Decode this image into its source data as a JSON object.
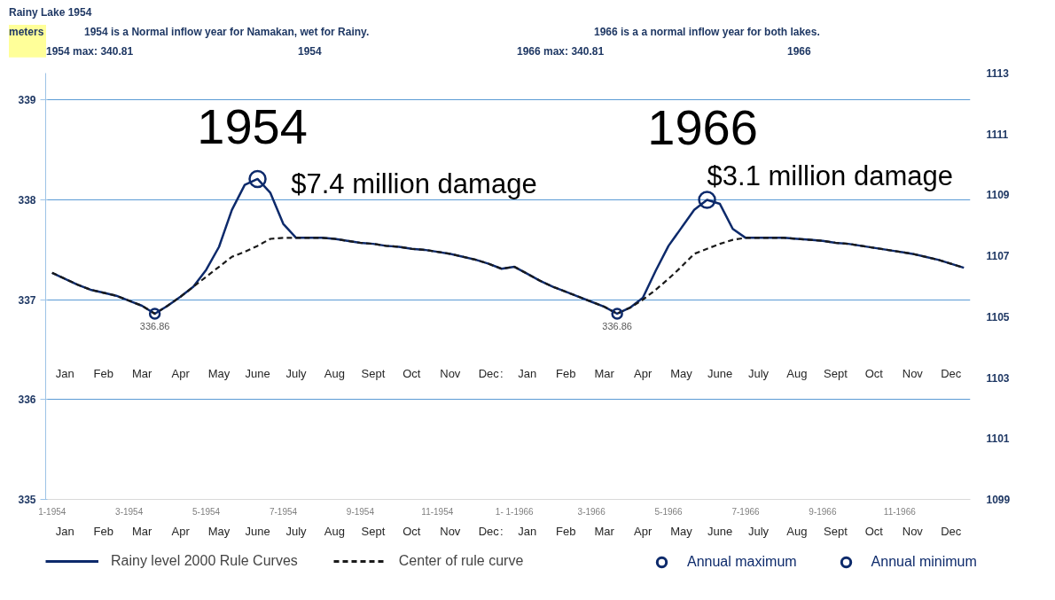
{
  "chart_data": {
    "type": "line",
    "title": "Rainy Lake 1954",
    "ylabel": "meters",
    "annotations": [
      "1954 is a Normal inflow year for Namakan, wet for Rainy.",
      "1966 is a  a normal inflow year for both lakes.",
      "1954 max: 340.81",
      "1954",
      "1966 max: 340.81",
      "1966",
      "1954",
      "$7.4 million damage",
      "1966",
      "$3.1 million damage",
      "Jan",
      "Feb",
      "Mar",
      "Apr",
      "May",
      "June",
      "July",
      "Aug",
      "Sept",
      "Oct",
      "Nov",
      "Dec",
      ":",
      "Jan",
      "Feb",
      "Mar",
      "Apr",
      "May",
      "June",
      "July",
      "Aug",
      "Sept",
      "Oct",
      "Nov",
      "Dec",
      ":"
    ],
    "categories": [
      "1-1954",
      "Jan",
      null,
      null,
      "Feb",
      null,
      "3-1954",
      "Mar",
      null,
      null,
      "Apr",
      null,
      "5-1954",
      "May",
      null,
      null,
      "June",
      null,
      "7-1954",
      "July",
      null,
      null,
      "Aug",
      null,
      "9-1954",
      "Sept",
      null,
      null,
      "Oct",
      null,
      "11-1954",
      "Nov",
      null,
      null,
      "Dec",
      null,
      "1- 1-1966",
      "Jan",
      null,
      null,
      "Feb",
      null,
      "3-1966",
      "Mar",
      null,
      null,
      "Apr",
      null,
      "5-1966",
      "May",
      null,
      null,
      "June",
      null,
      "7-1966",
      "July",
      null,
      null,
      "Aug",
      null,
      "9-1966",
      "Sept",
      null,
      null,
      "Oct",
      null,
      "11-1966",
      "Nov",
      null,
      null,
      "Dec",
      null
    ],
    "ylim": [
      335,
      339.27
    ],
    "yticks": [
      335,
      336,
      337,
      338,
      339
    ],
    "y2lim": [
      1099,
      1113
    ],
    "y2ticks": [
      1099,
      1101,
      1103,
      1105,
      1107,
      1109,
      1111,
      1113
    ],
    "grid": "y",
    "legend": "bottom",
    "series": [
      {
        "name": "Rainy level 2000 Rule Curves",
        "color": "#0d2a6b",
        "line_style": "solid",
        "values": [
          337.27,
          337.21,
          337.15,
          337.1,
          337.07,
          337.04,
          336.99,
          336.94,
          336.86,
          336.94,
          337.03,
          337.13,
          337.3,
          337.53,
          337.9,
          338.15,
          338.21,
          338.07,
          337.76,
          337.62,
          337.62,
          337.62,
          337.61,
          337.59,
          337.57,
          337.56,
          337.54,
          337.53,
          337.51,
          337.5,
          337.48,
          337.46,
          337.43,
          337.4,
          337.36,
          337.31,
          337.33,
          337.26,
          337.19,
          337.13,
          337.08,
          337.03,
          336.98,
          336.93,
          336.86,
          336.92,
          337.02,
          337.29,
          337.54,
          337.72,
          337.9,
          338.0,
          337.96,
          337.71,
          337.62,
          337.62,
          337.62,
          337.62,
          337.61,
          337.6,
          337.59,
          337.57,
          337.56,
          337.54,
          337.52,
          337.5,
          337.48,
          337.46,
          337.43,
          337.4,
          337.36,
          337.32
        ]
      },
      {
        "name": "Center of rule curve",
        "color": "#1a1a1a",
        "line_style": "dashed",
        "values": [
          337.27,
          337.21,
          337.15,
          337.1,
          337.07,
          337.04,
          336.99,
          336.94,
          336.86,
          336.94,
          337.03,
          337.13,
          337.23,
          337.33,
          337.43,
          337.48,
          337.54,
          337.61,
          337.62,
          337.62,
          337.62,
          337.62,
          337.61,
          337.59,
          337.57,
          337.56,
          337.54,
          337.53,
          337.51,
          337.5,
          337.48,
          337.46,
          337.43,
          337.4,
          337.36,
          337.31,
          337.33,
          337.26,
          337.19,
          337.13,
          337.08,
          337.03,
          336.98,
          336.93,
          336.86,
          336.92,
          337.0,
          337.1,
          337.21,
          337.33,
          337.46,
          337.51,
          337.56,
          337.6,
          337.62,
          337.62,
          337.62,
          337.62,
          337.61,
          337.6,
          337.59,
          337.57,
          337.56,
          337.54,
          337.52,
          337.5,
          337.48,
          337.46,
          337.43,
          337.4,
          337.36,
          337.32
        ]
      },
      {
        "name": "Annual maximum",
        "type": "scatter",
        "color": "#0d2a6b",
        "marker": "circle",
        "values": [
          null,
          null,
          null,
          null,
          null,
          null,
          null,
          null,
          null,
          null,
          null,
          null,
          null,
          null,
          null,
          null,
          338.21,
          null,
          null,
          null,
          null,
          null,
          null,
          null,
          null,
          null,
          null,
          null,
          null,
          null,
          null,
          null,
          null,
          null,
          null,
          null,
          null,
          null,
          null,
          null,
          null,
          null,
          null,
          null,
          null,
          null,
          null,
          null,
          null,
          null,
          null,
          338.0,
          null,
          null,
          null,
          null,
          null,
          null,
          null,
          null,
          null,
          null,
          null,
          null,
          null,
          null,
          null,
          null,
          null,
          null,
          null,
          null
        ]
      },
      {
        "name": "Annual minimum",
        "type": "scatter",
        "color": "#0d2a6b",
        "marker": "circle",
        "values": [
          null,
          null,
          null,
          null,
          null,
          null,
          null,
          null,
          336.86,
          null,
          null,
          null,
          null,
          null,
          null,
          null,
          null,
          null,
          null,
          null,
          null,
          null,
          null,
          null,
          null,
          null,
          null,
          null,
          null,
          null,
          null,
          null,
          null,
          null,
          null,
          null,
          null,
          null,
          null,
          null,
          null,
          null,
          null,
          null,
          336.86,
          null,
          null,
          null,
          null,
          null,
          null,
          null,
          null,
          null,
          null,
          null,
          null,
          null,
          null,
          null,
          null,
          null,
          null,
          null,
          null,
          null,
          null,
          null,
          null,
          null,
          null,
          null
        ],
        "value_labels": [
          null,
          null,
          null,
          null,
          null,
          null,
          null,
          null,
          "336.86",
          null,
          null,
          null,
          null,
          null,
          null,
          null,
          null,
          null,
          null,
          null,
          null,
          null,
          null,
          null,
          null,
          null,
          null,
          null,
          null,
          null,
          null,
          null,
          null,
          null,
          null,
          null,
          null,
          null,
          null,
          null,
          null,
          null,
          null,
          null,
          "336.86",
          null,
          null,
          null,
          null,
          null,
          null,
          null,
          null,
          null,
          null,
          null,
          null,
          null,
          null,
          null,
          null,
          null,
          null,
          null,
          null,
          null,
          null,
          null,
          null,
          null,
          null,
          null
        ]
      }
    ]
  }
}
